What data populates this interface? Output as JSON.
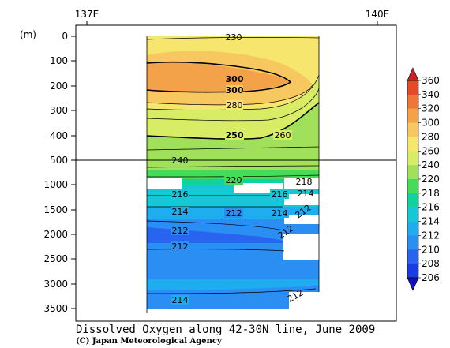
{
  "chart_data": {
    "type": "heatmap",
    "title": "Dissolved Oxygen along 42-30N line, June 2009",
    "credit": "(C) Japan Meteorological Agency",
    "ylabel": "(m)",
    "x_ticks": [
      "137E",
      "140E"
    ],
    "y_ticks_upper": [
      0,
      100,
      200,
      300,
      400,
      500
    ],
    "y_ticks_lower": [
      1000,
      1500,
      2000,
      2500,
      3000,
      3500
    ],
    "colorbar": {
      "levels": [
        206,
        208,
        210,
        212,
        214,
        216,
        218,
        220,
        240,
        260,
        280,
        300,
        320,
        340,
        360
      ],
      "colors": [
        "#1010c8",
        "#1a3ce6",
        "#2864f0",
        "#2a8ef2",
        "#1eaef0",
        "#14c8d8",
        "#10d2a0",
        "#46dc5a",
        "#a0e05a",
        "#d8ec66",
        "#f6e66e",
        "#f8c860",
        "#f4a24a",
        "#ee7638",
        "#e44a2a",
        "#d22020"
      ]
    },
    "contour_labels": [
      "230",
      "300",
      "300",
      "280",
      "250",
      "260",
      "240",
      "220",
      "218",
      "216",
      "214",
      "216",
      "214",
      "212",
      "214",
      "212",
      "212",
      "212",
      "212",
      "214",
      "212"
    ]
  }
}
